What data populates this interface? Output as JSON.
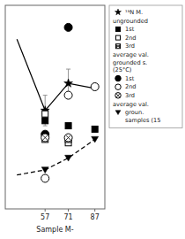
{
  "chart_data": {
    "type": "line",
    "x_label": "Sample M-",
    "xlim": [
      33,
      93
    ],
    "xticks": [
      57,
      71,
      87
    ],
    "ylim": [
      -0.5,
      5.5
    ],
    "yticks": [],
    "tick_labels": "x",
    "legend": "right",
    "series": [
      {
        "type": "line",
        "line_style": "solid",
        "color": "black",
        "x": [
          40,
          57,
          71,
          87
        ],
        "values": [
          4.5,
          2.4,
          3.2,
          3.05
        ]
      },
      {
        "name": "¹⁵N M.",
        "type": "scatter",
        "marker": "star",
        "color": "black",
        "x": [
          57,
          71
        ],
        "values": [
          2.4,
          3.2
        ],
        "errors": [
          0.45,
          0.42
        ]
      },
      {
        "name": "1st",
        "legend_heading": "ungrounded",
        "type": "scatter",
        "marker": "square",
        "color": "black",
        "x": [
          57,
          71,
          87
        ],
        "values": [
          2.1,
          1.95,
          1.85
        ]
      },
      {
        "name": "2nd",
        "type": "scatter",
        "marker": "square-open",
        "color": "black",
        "x": [
          57,
          71
        ],
        "values": [
          2.3,
          1.45
        ]
      },
      {
        "name": "3rd",
        "type": "scatter",
        "marker": "square-cross",
        "color": "black",
        "x": [
          57,
          71
        ],
        "values": [
          1.55,
          1.55
        ]
      },
      {
        "name": "1st",
        "legend_heading": "average val.\ngrounded s.\n(25°C)",
        "type": "scatter",
        "marker": "circle",
        "color": "black",
        "x": [
          57,
          71
        ],
        "values": [
          1.7,
          4.85
        ]
      },
      {
        "name": "2nd",
        "type": "scatter",
        "marker": "circle-open",
        "color": "black",
        "x": [
          57,
          71,
          87
        ],
        "values": [
          0.4,
          2.85,
          3.1
        ]
      },
      {
        "name": "3rd",
        "type": "scatter",
        "marker": "circle-cross",
        "color": "black",
        "x": [
          57,
          71
        ],
        "values": [
          1.6,
          1.6
        ]
      },
      {
        "type": "line",
        "line_style": "dashed",
        "color": "black",
        "x": [
          40,
          57,
          71,
          87
        ],
        "values": [
          0.5,
          0.65,
          1.0,
          1.55
        ]
      },
      {
        "name": "groun.\nsamples (15",
        "legend_heading": "average val.",
        "type": "scatter",
        "marker": "triangle-down",
        "color": "black",
        "x": [
          57,
          71,
          87
        ],
        "values": [
          0.65,
          1.0,
          1.55
        ]
      }
    ]
  }
}
